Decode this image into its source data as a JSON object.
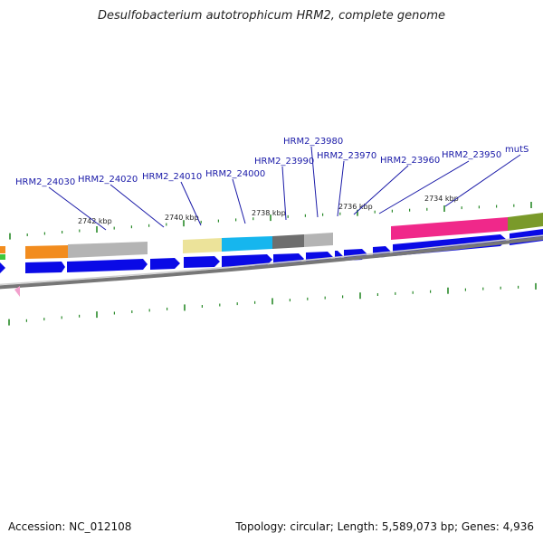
{
  "title": "Desulfobacterium autotrophicum HRM2, complete genome",
  "accession": "Accession: NC_012108",
  "summary": "Topology: circular; Length: 5,589,073 bp; Genes: 4,936",
  "kbp_labels": [
    "2742 kbp",
    "2740 kbp",
    "2738 kbp",
    "2736 kbp",
    "2734 kbp"
  ],
  "gene_labels": [
    "HRM2_24030",
    "HRM2_24020",
    "HRM2_24010",
    "HRM2_24000",
    "HRM2_23990",
    "HRM2_23980",
    "HRM2_23970",
    "HRM2_23960",
    "HRM2_23950",
    "mutS"
  ],
  "colors": {
    "cds_arrow": "#0a0ae6",
    "tick": "#2a8a2a",
    "label": "#1a1aa8",
    "backbone": "#888888",
    "feature_orange": "#f28c1e",
    "feature_gray": "#b4b4b4",
    "feature_khaki": "#ece39a",
    "feature_cyan": "#16b6ee",
    "feature_dark_gray": "#6e6e6e",
    "feature_pink": "#f0288a",
    "feature_olive": "#7a9a2a",
    "feature_green": "#3cc83c",
    "marker_pink": "#f2a0cc"
  }
}
